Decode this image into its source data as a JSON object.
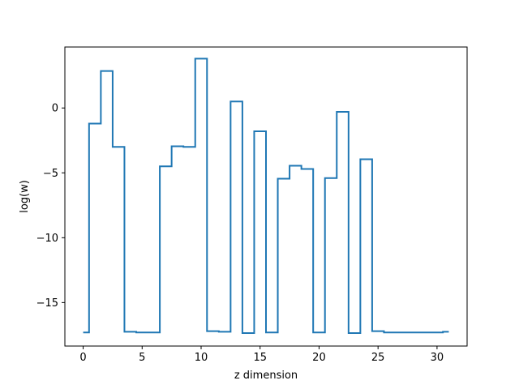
{
  "chart_data": {
    "type": "line",
    "drawstyle": "steps-mid",
    "xlabel": "z dimension",
    "ylabel": "log(w)",
    "xlim": [
      -1.55,
      32.55
    ],
    "ylim": [
      -18.35,
      4.7
    ],
    "xticks": [
      0,
      5,
      10,
      15,
      20,
      25,
      30
    ],
    "yticks": [
      -15,
      -10,
      -5,
      0
    ],
    "ytick_labels": [
      "−15",
      "−10",
      "−5",
      "0"
    ],
    "grid": false,
    "series": [
      {
        "color": "#1f77b4",
        "x": [
          0,
          1,
          2,
          3,
          4,
          5,
          6,
          7,
          8,
          9,
          10,
          11,
          12,
          13,
          14,
          15,
          16,
          17,
          18,
          19,
          20,
          21,
          22,
          23,
          24,
          25,
          26,
          27,
          28,
          29,
          30,
          31
        ],
        "y": [
          -17.3,
          -1.2,
          2.85,
          -3.0,
          -17.25,
          -17.3,
          -17.3,
          -4.5,
          -2.95,
          -3.0,
          3.8,
          -17.2,
          -17.25,
          0.5,
          -17.35,
          -1.8,
          -17.3,
          -5.45,
          -4.45,
          -4.7,
          -17.3,
          -5.4,
          -0.3,
          -17.35,
          -3.95,
          -17.2,
          -17.3,
          -17.3,
          -17.3,
          -17.3,
          -17.3,
          -17.25
        ]
      }
    ]
  }
}
